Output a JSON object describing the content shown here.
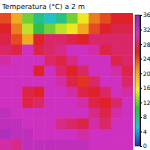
{
  "chart_data": {
    "type": "heatmap",
    "title": "Temperatura (°C) a 2 m",
    "cells": [
      [
        24,
        20,
        12,
        8,
        6,
        8,
        12,
        16,
        22,
        24,
        26,
        26
      ],
      [
        26,
        22,
        14,
        10,
        12,
        14,
        16,
        20,
        24,
        26,
        27,
        27
      ],
      [
        27,
        24,
        20,
        26,
        28,
        28,
        27,
        26,
        28,
        28,
        28,
        28
      ],
      [
        28,
        27,
        31,
        27,
        28,
        29,
        31,
        31,
        30,
        27,
        28,
        28
      ],
      [
        30,
        31,
        31,
        31,
        28,
        27,
        29,
        31,
        31,
        31,
        27,
        28
      ],
      [
        31,
        31,
        31,
        26,
        31,
        28,
        26,
        28,
        31,
        31,
        30,
        27
      ],
      [
        31,
        31,
        31,
        31,
        31,
        30,
        27,
        25,
        28,
        31,
        31,
        28
      ],
      [
        31,
        31,
        27,
        26,
        31,
        31,
        30,
        27,
        26,
        28,
        31,
        30
      ],
      [
        31,
        31,
        27,
        28,
        31,
        31,
        31,
        30,
        27,
        26,
        28,
        31
      ],
      [
        32,
        31,
        31,
        31,
        31,
        31,
        31,
        31,
        29,
        27,
        30,
        31
      ],
      [
        32,
        32,
        31,
        31,
        31,
        29,
        28,
        27,
        30,
        28,
        31,
        31
      ],
      [
        33,
        32,
        32,
        31,
        31,
        31,
        31,
        30,
        31,
        31,
        31,
        31
      ],
      [
        30,
        29,
        32,
        32,
        32,
        32,
        32,
        32,
        31,
        31,
        31,
        31
      ]
    ],
    "zlim": [
      0,
      36
    ],
    "zticks": [
      0,
      4,
      8,
      12,
      16,
      20,
      24,
      28,
      32,
      36
    ],
    "colors": [
      "#2030c0",
      "#20c0e0",
      "#30c040",
      "#f0f020",
      "#f0a020",
      "#e02020",
      "#d030c0",
      "#8030b0"
    ],
    "tick_labels": false
  }
}
